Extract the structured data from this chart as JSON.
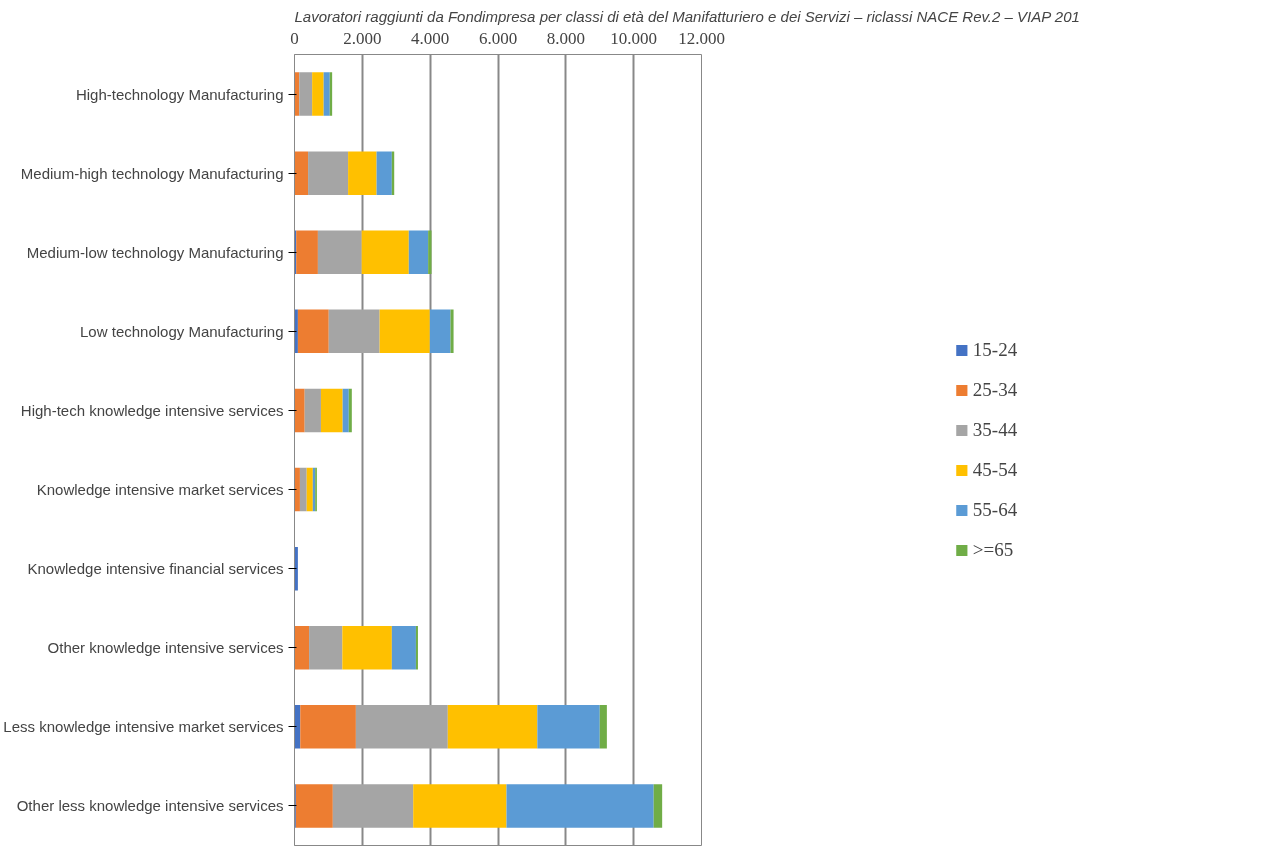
{
  "chart_data": {
    "type": "bar",
    "orientation": "horizontal",
    "stacked": true,
    "title": "Lavoratori raggiunti da Fondimpresa per classi di età del Manifatturiero e dei Servizi – riclassi NACE Rev.2 – VIAP 201",
    "categories": [
      "High-technology Manufacturing",
      "Medium-high technology Manufacturing",
      "Medium-low technology Manufacturing",
      "Low technology Manufacturing",
      "High-tech knowledge intensive services",
      "Knowledge intensive market services",
      "Knowledge intensive financial services",
      "Other knowledge intensive services",
      "Less knowledge intensive market services",
      "Other less knowledge intensive services"
    ],
    "series": [
      {
        "name": "15-24",
        "color": "#4472c4",
        "values": [
          null,
          null,
          50,
          100,
          null,
          null,
          100,
          null,
          170,
          40
        ]
      },
      {
        "name": "25-34",
        "color": "#ed7d31",
        "values": [
          140,
          400,
          640,
          910,
          300,
          160,
          null,
          430,
          1640,
          1090
        ]
      },
      {
        "name": "35-44",
        "color": "#a5a5a5",
        "values": [
          380,
          1180,
          1290,
          1500,
          480,
          200,
          null,
          980,
          2710,
          2370
        ]
      },
      {
        "name": "45-54",
        "color": "#ffc000",
        "values": [
          340,
          840,
          1390,
          1480,
          640,
          180,
          null,
          1460,
          2640,
          2750
        ]
      },
      {
        "name": "55-64",
        "color": "#5b9bd5",
        "values": [
          180,
          450,
          570,
          610,
          180,
          70,
          null,
          710,
          1840,
          4340
        ]
      },
      {
        "name": ">=65",
        "color": "#70ad47",
        "values": [
          70,
          70,
          100,
          90,
          90,
          50,
          null,
          60,
          210,
          250
        ]
      }
    ],
    "xlim": [
      0,
      12000
    ],
    "xticks": [
      0,
      {
        "value": 2000,
        "label": "2.000"
      },
      {
        "value": 4000,
        "label": "4.000"
      },
      {
        "value": 6000,
        "label": "6.000"
      },
      {
        "value": 8000,
        "label": "8.000"
      },
      {
        "value": 10000,
        "label": "10.000"
      },
      {
        "value": 12000,
        "label": "12.000"
      }
    ],
    "grid": "x",
    "legend": "right"
  }
}
